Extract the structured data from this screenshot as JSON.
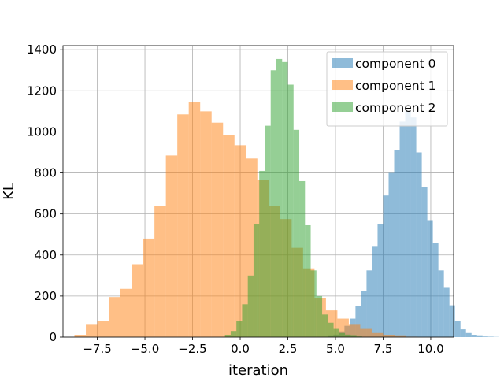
{
  "chart_data": {
    "type": "bar",
    "title": "",
    "xlabel": "iteration",
    "ylabel": "KL",
    "xlim": [
      -9.3,
      11.2
    ],
    "ylim": [
      0,
      1420
    ],
    "xticks": [
      -7.5,
      -5.0,
      -2.5,
      0.0,
      2.5,
      5.0,
      7.5,
      10.0
    ],
    "xtick_labels": [
      "−7.5",
      "−5.0",
      "−2.5",
      "0.0",
      "2.5",
      "5.0",
      "7.5",
      "10.0"
    ],
    "yticks": [
      0,
      200,
      400,
      600,
      800,
      1000,
      1200,
      1400
    ],
    "ytick_labels": [
      "0",
      "200",
      "400",
      "600",
      "800",
      "1000",
      "1200",
      "1400"
    ],
    "grid": true,
    "legend_position": "top-right",
    "bar_alpha": 0.5,
    "series": [
      {
        "name": "component 0",
        "color": "#1f77b4",
        "bin_start": 4.6,
        "bin_width": 0.29,
        "counts": [
          5,
          12,
          28,
          55,
          90,
          150,
          225,
          325,
          440,
          550,
          690,
          800,
          910,
          1050,
          1100,
          1070,
          900,
          730,
          570,
          460,
          325,
          240,
          155,
          80,
          38,
          20,
          10,
          5,
          3,
          2,
          1
        ]
      },
      {
        "name": "component 1",
        "color": "#ff7f0e",
        "bin_start": -8.7,
        "bin_width": 0.6,
        "counts": [
          10,
          60,
          80,
          195,
          235,
          355,
          480,
          640,
          885,
          1085,
          1145,
          1100,
          1045,
          985,
          935,
          870,
          765,
          640,
          575,
          435,
          335,
          190,
          130,
          90,
          60,
          40,
          20,
          10,
          5,
          2
        ]
      },
      {
        "name": "component 2",
        "color": "#2ca02c",
        "bin_start": -0.8,
        "bin_width": 0.3,
        "counts": [
          8,
          30,
          80,
          160,
          300,
          550,
          810,
          1030,
          1300,
          1355,
          1340,
          1230,
          1010,
          760,
          545,
          325,
          200,
          110,
          70,
          40,
          20,
          12,
          6,
          3
        ]
      }
    ]
  }
}
